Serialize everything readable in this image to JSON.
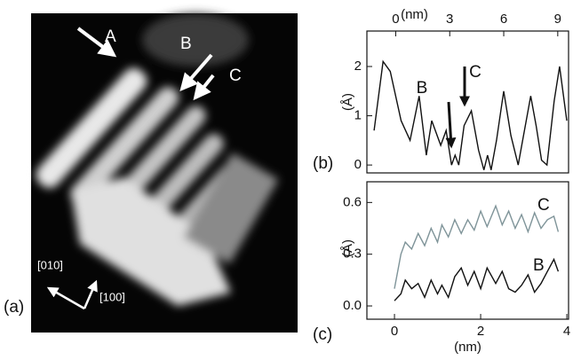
{
  "image": {
    "panel_label": "(a)",
    "labels": [
      "A",
      "B",
      "C"
    ],
    "directions": [
      "[010]",
      "[100]"
    ]
  },
  "chart_data": [
    {
      "type": "line",
      "panel_label": "(b)",
      "x_label": "(nm)",
      "y_label": "(Å)",
      "annotations": [
        "B",
        "C"
      ],
      "color": "#111111",
      "x": [
        -1.2,
        -0.7,
        -0.3,
        0.3,
        0.8,
        1.3,
        1.7,
        2.0,
        2.5,
        2.8,
        3.1,
        3.3,
        3.5,
        3.8,
        4.2,
        4.6,
        4.9,
        5.1,
        5.3,
        5.6,
        6.0,
        6.4,
        6.8,
        7.0,
        7.5,
        7.8,
        8.1,
        8.4,
        8.8,
        9.1,
        9.5
      ],
      "values": [
        0.7,
        2.1,
        1.9,
        0.9,
        0.5,
        1.4,
        0.2,
        0.9,
        0.4,
        0.7,
        0.0,
        0.2,
        0.0,
        0.8,
        1.1,
        0.3,
        -0.1,
        0.2,
        -0.1,
        0.5,
        1.5,
        0.6,
        0.0,
        0.4,
        1.4,
        0.8,
        0.1,
        0.0,
        1.3,
        2.0,
        0.9
      ],
      "xlim": [
        -1.6,
        9.6
      ],
      "xticks": [
        0,
        3,
        6,
        9
      ],
      "ylim": [
        -0.16,
        2.72
      ],
      "yticks": [
        0,
        1,
        2
      ]
    },
    {
      "type": "line",
      "panel_label": "(c)",
      "x_label": "(nm)",
      "y_label": "(Å)",
      "x": [
        0,
        0.15,
        0.25,
        0.4,
        0.55,
        0.7,
        0.85,
        1.0,
        1.1,
        1.25,
        1.4,
        1.55,
        1.7,
        1.85,
        2.0,
        2.15,
        2.35,
        2.5,
        2.65,
        2.8,
        2.95,
        3.1,
        3.25,
        3.4,
        3.55,
        3.7,
        3.8
      ],
      "series": [
        {
          "name": "C",
          "color": "#7f9499",
          "values": [
            0.1,
            0.3,
            0.37,
            0.33,
            0.42,
            0.35,
            0.45,
            0.37,
            0.47,
            0.4,
            0.5,
            0.42,
            0.5,
            0.44,
            0.55,
            0.46,
            0.58,
            0.47,
            0.55,
            0.45,
            0.53,
            0.43,
            0.54,
            0.45,
            0.5,
            0.52,
            0.43
          ]
        },
        {
          "name": "B",
          "color": "#111111",
          "values": [
            0.03,
            0.07,
            0.15,
            0.1,
            0.13,
            0.05,
            0.15,
            0.07,
            0.12,
            0.05,
            0.17,
            0.22,
            0.12,
            0.2,
            0.1,
            0.22,
            0.13,
            0.2,
            0.1,
            0.08,
            0.12,
            0.18,
            0.08,
            0.13,
            0.2,
            0.27,
            0.2
          ]
        }
      ],
      "xlim": [
        -0.64,
        4.04
      ],
      "xticks": [
        0,
        2,
        4
      ],
      "ylim": [
        -0.077,
        0.72
      ],
      "yticks": [
        {
          "value": 0,
          "label": "0.0"
        },
        {
          "value": 0.3,
          "label": "0.3"
        },
        {
          "value": 0.6,
          "label": "0.6"
        }
      ]
    }
  ]
}
